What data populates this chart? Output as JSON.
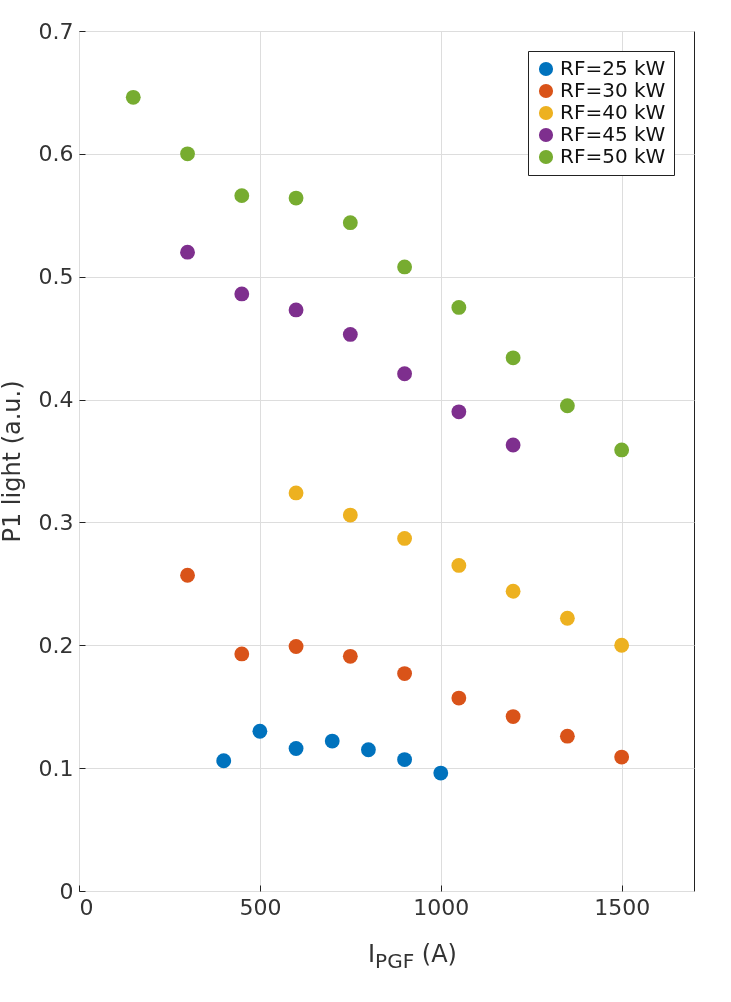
{
  "chart_data": {
    "type": "scatter",
    "xlabel": "I$_{PGF}$ (A)",
    "ylabel": "P1 light (a.u.)",
    "xlim": [
      0,
      1700
    ],
    "xticks": [
      0,
      500,
      1000,
      1500
    ],
    "ylim": [
      0,
      0.7
    ],
    "yticks": [
      0,
      0.1,
      0.2,
      0.3,
      0.4,
      0.5,
      0.6,
      0.7
    ],
    "grid": true,
    "legend": "top right",
    "marker": "circle",
    "series": [
      {
        "name": "RF=25 kW",
        "color": "#0072bd",
        "x": [
          400,
          500,
          600,
          700,
          800,
          900,
          1000
        ],
        "values": [
          0.106,
          0.13,
          0.116,
          0.122,
          0.115,
          0.107,
          0.096
        ]
      },
      {
        "name": "RF=30 kW",
        "color": "#d95319",
        "x": [
          300,
          450,
          600,
          750,
          900,
          1050,
          1200,
          1350,
          1500
        ],
        "values": [
          0.257,
          0.193,
          0.199,
          0.191,
          0.177,
          0.157,
          0.142,
          0.126,
          0.109
        ]
      },
      {
        "name": "RF=40 kW",
        "color": "#edb120",
        "x": [
          600,
          750,
          900,
          1050,
          1200,
          1350,
          1500
        ],
        "values": [
          0.324,
          0.306,
          0.287,
          0.265,
          0.244,
          0.222,
          0.2
        ]
      },
      {
        "name": "RF=45 kW",
        "color": "#7e2f8e",
        "x": [
          300,
          450,
          600,
          750,
          900,
          1050,
          1200
        ],
        "values": [
          0.52,
          0.486,
          0.473,
          0.453,
          0.421,
          0.39,
          0.363
        ]
      },
      {
        "name": "RF=50 kW",
        "color": "#77ac30",
        "x": [
          150,
          300,
          450,
          600,
          750,
          900,
          1050,
          1200,
          1350,
          1500
        ],
        "values": [
          0.646,
          0.6,
          0.566,
          0.564,
          0.544,
          0.508,
          0.475,
          0.434,
          0.395,
          0.359
        ]
      }
    ]
  }
}
